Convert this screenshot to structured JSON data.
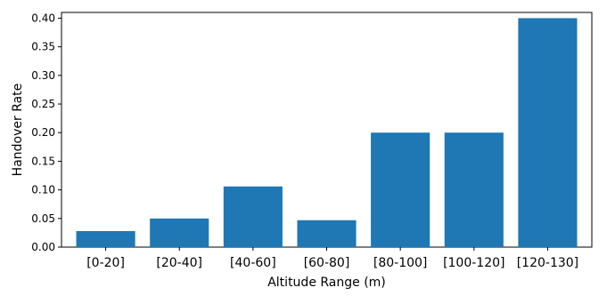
{
  "chart_data": {
    "type": "bar",
    "title": "",
    "xlabel": "Altitude Range (m)",
    "ylabel": "Handover Rate",
    "categories": [
      "[0-20]",
      "[20-40]",
      "[40-60]",
      "[60-80]",
      "[80-100]",
      "[100-120]",
      "[120-130]"
    ],
    "values": [
      0.028,
      0.05,
      0.106,
      0.047,
      0.2,
      0.2,
      0.4
    ],
    "ylim": [
      0,
      0.41
    ],
    "yticks": [
      "0.00",
      "0.05",
      "0.10",
      "0.15",
      "0.20",
      "0.25",
      "0.30",
      "0.35",
      "0.40"
    ],
    "grid": false,
    "legend": "none",
    "colors": {
      "bar": "#1f77b4",
      "axis": "#000000",
      "background": "#ffffff"
    }
  }
}
